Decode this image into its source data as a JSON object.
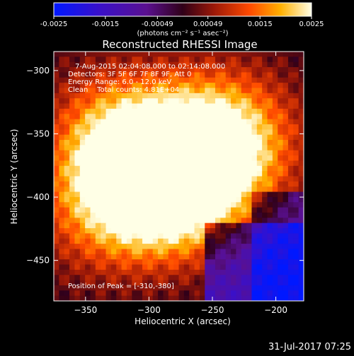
{
  "chart_data": {
    "type": "heatmap",
    "title": "Reconstructed RHESSI Image",
    "xlabel": "Heliocentric X (arcsec)",
    "ylabel": "Heliocentric Y (arcsec)",
    "xlim": [
      -375,
      -178
    ],
    "ylim": [
      -482,
      -285
    ],
    "xticks": [
      -350,
      -300,
      -250,
      -200
    ],
    "yticks": [
      -300,
      -350,
      -400,
      -450
    ],
    "colorbar": {
      "label": "(photons cm⁻² s⁻¹ asec⁻²)",
      "ticks": [
        "-0.0025",
        "-0.0015",
        "-0.00049",
        "0.00049",
        "0.0015",
        "0.0025"
      ],
      "range": [
        -0.0025,
        0.0025
      ],
      "colormap": "blue-purple-red-yellow-white"
    },
    "sources": [
      {
        "x": -310,
        "y": -380,
        "peak": 0.0025
      },
      {
        "x": -280,
        "y": -395,
        "peak": 0.002
      },
      {
        "x": -255,
        "y": -360,
        "peak": 0.0017
      },
      {
        "x": -230,
        "y": -355,
        "peak": 0.0013
      },
      {
        "x": -330,
        "y": -345,
        "peak": 0.001
      },
      {
        "x": -345,
        "y": -415,
        "peak": 0.0008
      }
    ],
    "annotations": [
      "7-Aug-2015 02:04:08.000 to 02:14:08.000",
      "Detectors: 3F 5F 6F 7F 8F 9F, Att 0",
      "Energy Range: 6.0 - 12.0 keV",
      "Clean    Total counts: 4.81E+04"
    ],
    "peak_label": "Position of Peak = [-310,-380]",
    "peak_position": [
      -310,
      -380
    ]
  },
  "footer": {
    "timestamp": "31-Jul-2017 07:25"
  }
}
